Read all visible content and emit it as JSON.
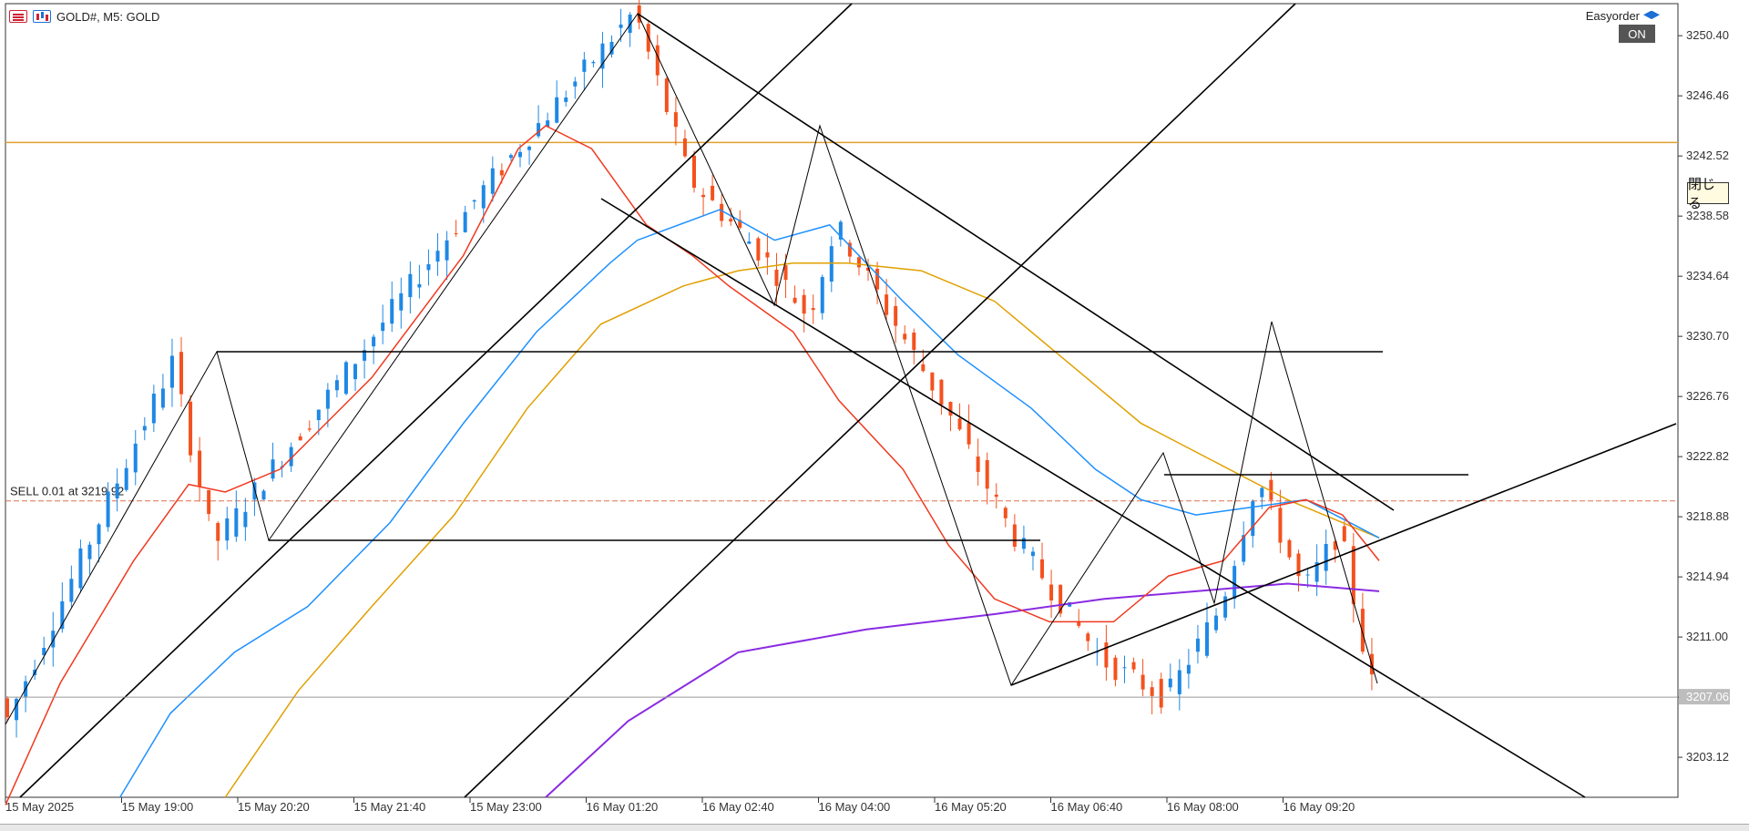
{
  "header": {
    "symbol_label": "GOLD#, M5:  GOLD",
    "menu_icon": "menu-icon",
    "chart_icon": "candlestick-icon"
  },
  "expert": {
    "name": "Easyorder",
    "icon": "graduation-cap-icon",
    "status_label": "ON",
    "close_label": "閉じる"
  },
  "chart_data": {
    "type": "candlestick",
    "symbol": "GOLD#",
    "timeframe": "M5",
    "ylim": [
      3200.5,
      3252.5
    ],
    "yticks": [
      "3250.40",
      "3246.46",
      "3242.52",
      "3238.58",
      "3234.64",
      "3230.70",
      "3226.76",
      "3222.82",
      "3218.88",
      "3214.94",
      "3211.00",
      "3207.06",
      "3203.12"
    ],
    "xticks": [
      "15 May 2025",
      "15 May 19:00",
      "15 May 20:20",
      "15 May 21:40",
      "15 May 23:00",
      "16 May 01:20",
      "16 May 02:40",
      "16 May 04:00",
      "16 May 05:20",
      "16 May 06:40",
      "16 May 08:00",
      "16 May 09:20"
    ],
    "x_range": [
      0,
      150
    ],
    "current_price": "3207.06",
    "order_line": {
      "label": "SELL 0.01 at 3219.92",
      "price": 3219.92
    },
    "horizontal_level": 3243.4,
    "colors": {
      "bull": "#1e88e5",
      "bear": "#f4511e",
      "ma_red": "#f0391f",
      "ma_blue": "#1e90ff",
      "ma_orange": "#e0a000",
      "ma_purple": "#8a2be2",
      "level": "#e0a030",
      "order": "#e07050",
      "drawing": "#000000"
    },
    "anchors": [
      [
        0,
        3205
      ],
      [
        18.5,
        3229
      ],
      [
        23,
        3217
      ],
      [
        37,
        3228
      ],
      [
        52,
        3240
      ],
      [
        69,
        3252
      ],
      [
        75,
        3241
      ],
      [
        83,
        3236
      ],
      [
        88,
        3232
      ],
      [
        91,
        3238
      ],
      [
        103,
        3226
      ],
      [
        110,
        3218
      ],
      [
        120,
        3209.5
      ],
      [
        127,
        3207
      ],
      [
        133,
        3213
      ],
      [
        137,
        3221.5
      ],
      [
        142,
        3214
      ],
      [
        146,
        3218
      ],
      [
        149,
        3209
      ],
      [
        150,
        3207
      ]
    ],
    "ma_red": [
      [
        0,
        3200
      ],
      [
        6,
        3208
      ],
      [
        14,
        3216
      ],
      [
        20,
        3221
      ],
      [
        24,
        3220.5
      ],
      [
        30,
        3222
      ],
      [
        40,
        3228
      ],
      [
        50,
        3236
      ],
      [
        56,
        3243
      ],
      [
        59,
        3244.5
      ],
      [
        64,
        3243
      ],
      [
        70,
        3238
      ],
      [
        75,
        3236
      ],
      [
        79,
        3234
      ],
      [
        86,
        3231
      ],
      [
        91,
        3226.5
      ],
      [
        98,
        3222
      ],
      [
        103,
        3217
      ],
      [
        108,
        3213.5
      ],
      [
        114,
        3212
      ],
      [
        121,
        3212
      ],
      [
        127,
        3215
      ],
      [
        133,
        3216
      ],
      [
        138,
        3219.5
      ],
      [
        142,
        3220
      ],
      [
        146,
        3219
      ],
      [
        150,
        3216
      ]
    ],
    "ma_blue": [
      [
        12.5,
        3200.5
      ],
      [
        18,
        3206
      ],
      [
        25,
        3210
      ],
      [
        33,
        3213
      ],
      [
        42,
        3218.5
      ],
      [
        50,
        3225
      ],
      [
        58,
        3231
      ],
      [
        66,
        3235.5
      ],
      [
        69,
        3237
      ],
      [
        78,
        3239
      ],
      [
        84,
        3237
      ],
      [
        90,
        3238
      ],
      [
        98,
        3233
      ],
      [
        104,
        3229.5
      ],
      [
        112,
        3226
      ],
      [
        119,
        3222
      ],
      [
        124,
        3220
      ],
      [
        130,
        3219
      ],
      [
        136,
        3219.5
      ],
      [
        142,
        3220
      ],
      [
        150,
        3217.5
      ]
    ],
    "ma_orange": [
      [
        24,
        3200.5
      ],
      [
        32,
        3207.5
      ],
      [
        40,
        3213
      ],
      [
        49,
        3219
      ],
      [
        57,
        3226
      ],
      [
        65,
        3231.5
      ],
      [
        74,
        3234
      ],
      [
        80,
        3235
      ],
      [
        86,
        3235.5
      ],
      [
        92,
        3235.5
      ],
      [
        100,
        3235
      ],
      [
        108,
        3233
      ],
      [
        116,
        3229
      ],
      [
        124,
        3225
      ],
      [
        132,
        3222.5
      ],
      [
        140,
        3220
      ],
      [
        150,
        3217.5
      ]
    ],
    "ma_purple": [
      [
        59,
        3200.5
      ],
      [
        68,
        3205.5
      ],
      [
        80,
        3210
      ],
      [
        94,
        3211.5
      ],
      [
        108,
        3212.5
      ],
      [
        120,
        3213.5
      ],
      [
        130,
        3214
      ],
      [
        140,
        3214.5
      ],
      [
        150,
        3214
      ]
    ]
  }
}
